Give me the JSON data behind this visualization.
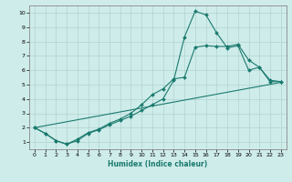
{
  "xlabel": "Humidex (Indice chaleur)",
  "bg_color": "#ceecea",
  "grid_color": "#b0d4d0",
  "line_color": "#1a7a6e",
  "xlim": [
    -0.5,
    23.5
  ],
  "ylim": [
    0.5,
    10.5
  ],
  "xticks": [
    0,
    1,
    2,
    3,
    4,
    5,
    6,
    7,
    8,
    9,
    10,
    11,
    12,
    13,
    14,
    15,
    16,
    17,
    18,
    19,
    20,
    21,
    22,
    23
  ],
  "yticks": [
    1,
    2,
    3,
    4,
    5,
    6,
    7,
    8,
    9,
    10
  ],
  "line1_x": [
    0,
    1,
    2,
    3,
    4,
    5,
    6,
    7,
    8,
    9,
    10,
    11,
    12,
    13,
    14,
    15,
    16,
    17,
    18,
    19,
    20,
    21,
    22,
    23
  ],
  "line1_y": [
    2.0,
    1.6,
    1.1,
    0.85,
    1.1,
    1.6,
    1.85,
    2.2,
    2.5,
    2.8,
    3.2,
    3.6,
    4.0,
    5.3,
    8.3,
    10.1,
    9.85,
    8.6,
    7.55,
    7.7,
    6.0,
    6.2,
    5.2,
    5.2
  ],
  "line2_x": [
    0,
    1,
    2,
    3,
    4,
    5,
    6,
    7,
    8,
    9,
    10,
    11,
    12,
    13,
    14,
    15,
    16,
    17,
    18,
    19,
    20,
    21,
    22,
    23
  ],
  "line2_y": [
    2.0,
    1.6,
    1.1,
    0.85,
    1.2,
    1.65,
    1.9,
    2.3,
    2.6,
    3.0,
    3.6,
    4.3,
    4.7,
    5.4,
    5.5,
    7.6,
    7.7,
    7.65,
    7.65,
    7.8,
    6.7,
    6.2,
    5.3,
    5.2
  ],
  "line3_x": [
    0,
    23
  ],
  "line3_y": [
    2.0,
    5.15
  ]
}
